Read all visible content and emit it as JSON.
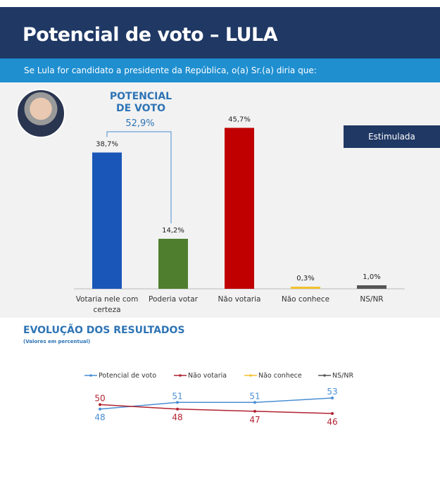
{
  "header": {
    "title": "Potencial de voto – LULA",
    "subtitle": "Se Lula for candidato a presidente da República, o(a) Sr.(a) diria que:"
  },
  "chart_data": [
    {
      "type": "bar",
      "badge": "Estimulada",
      "annotation": {
        "title": "POTENCIAL DE VOTO",
        "value": 52.9,
        "label": "52,9%"
      },
      "categories": [
        "Votaria nele com certeza",
        "Poderia votar",
        "Não votaria",
        "Não conhece",
        "NS/NR"
      ],
      "values": [
        38.7,
        14.2,
        45.7,
        0.3,
        1.0
      ],
      "value_labels": [
        "38,7%",
        "14,2%",
        "45,7%",
        "0,3%",
        "1,0%"
      ],
      "colors": [
        "#1a56b8",
        "#4f7f2e",
        "#c00000",
        "#f2c12e",
        "#555555"
      ]
    },
    {
      "type": "line",
      "title": "EVOLUÇÃO DOS RESULTADOS",
      "subtitle": "(Valores em percentual)",
      "categories": [
        null,
        null,
        null,
        null
      ],
      "series": [
        {
          "name": "Potencial de voto",
          "color": "#4a8fd4",
          "values": [
            48,
            51,
            51,
            53
          ]
        },
        {
          "name": "Não votaria",
          "color": "#b22230",
          "values": [
            50,
            48,
            47,
            46
          ]
        },
        {
          "name": "Não conhece",
          "color": "#f2c12e",
          "values": [
            null,
            null,
            null,
            null
          ]
        },
        {
          "name": "NS/NR",
          "color": "#555555",
          "values": [
            null,
            null,
            null,
            null
          ]
        }
      ]
    }
  ]
}
